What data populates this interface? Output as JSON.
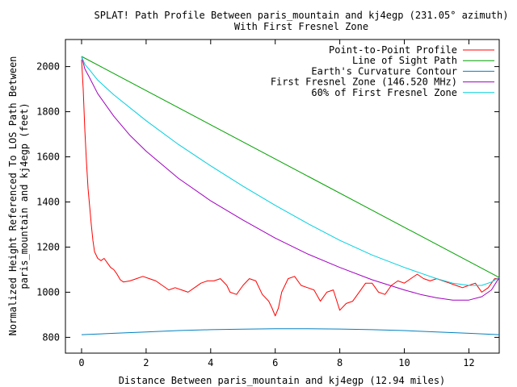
{
  "chart_data": {
    "type": "line",
    "title": "SPLAT! Path Profile Between paris_mountain and kj4egp (231.05° azimuth)",
    "subtitle": "With First Fresnel Zone",
    "xlabel": "Distance Between paris_mountain and kj4egp (12.94 miles)",
    "ylabel_lines": [
      "Normalized Height Referenced To LOS Path Between",
      "paris_mountain and kj4egp (feet)"
    ],
    "xlim": [
      -0.5,
      12.94
    ],
    "ylim": [
      730,
      2120
    ],
    "x_ticks": [
      "0",
      "2",
      "4",
      "6",
      "8",
      "10",
      "12"
    ],
    "y_ticks": [
      "800",
      "1000",
      "1200",
      "1400",
      "1600",
      "1800",
      "2000"
    ],
    "grid": false,
    "legend_position": "top-right",
    "series": [
      {
        "name": "Point-to-Point Profile",
        "color": "#ff0000",
        "points": [
          [
            0,
            2030
          ],
          [
            0.05,
            1900
          ],
          [
            0.1,
            1720
          ],
          [
            0.15,
            1580
          ],
          [
            0.2,
            1460
          ],
          [
            0.25,
            1380
          ],
          [
            0.3,
            1300
          ],
          [
            0.35,
            1230
          ],
          [
            0.4,
            1180
          ],
          [
            0.5,
            1150
          ],
          [
            0.6,
            1140
          ],
          [
            0.7,
            1150
          ],
          [
            0.8,
            1130
          ],
          [
            0.9,
            1110
          ],
          [
            1.0,
            1100
          ],
          [
            1.1,
            1080
          ],
          [
            1.2,
            1055
          ],
          [
            1.3,
            1045
          ],
          [
            1.5,
            1050
          ],
          [
            1.7,
            1060
          ],
          [
            1.9,
            1070
          ],
          [
            2.1,
            1060
          ],
          [
            2.3,
            1050
          ],
          [
            2.5,
            1030
          ],
          [
            2.7,
            1010
          ],
          [
            2.9,
            1020
          ],
          [
            3.1,
            1010
          ],
          [
            3.3,
            1000
          ],
          [
            3.5,
            1020
          ],
          [
            3.7,
            1040
          ],
          [
            3.9,
            1050
          ],
          [
            4.1,
            1050
          ],
          [
            4.3,
            1060
          ],
          [
            4.5,
            1030
          ],
          [
            4.6,
            1000
          ],
          [
            4.8,
            990
          ],
          [
            5.0,
            1030
          ],
          [
            5.2,
            1060
          ],
          [
            5.4,
            1050
          ],
          [
            5.6,
            990
          ],
          [
            5.8,
            960
          ],
          [
            5.9,
            930
          ],
          [
            6.0,
            895
          ],
          [
            6.1,
            930
          ],
          [
            6.2,
            1000
          ],
          [
            6.4,
            1060
          ],
          [
            6.6,
            1070
          ],
          [
            6.8,
            1030
          ],
          [
            7.0,
            1020
          ],
          [
            7.2,
            1010
          ],
          [
            7.4,
            960
          ],
          [
            7.6,
            1000
          ],
          [
            7.8,
            1010
          ],
          [
            8.0,
            920
          ],
          [
            8.2,
            950
          ],
          [
            8.4,
            960
          ],
          [
            8.6,
            1000
          ],
          [
            8.8,
            1040
          ],
          [
            9.0,
            1040
          ],
          [
            9.2,
            1000
          ],
          [
            9.4,
            990
          ],
          [
            9.6,
            1030
          ],
          [
            9.8,
            1050
          ],
          [
            10.0,
            1040
          ],
          [
            10.2,
            1060
          ],
          [
            10.4,
            1080
          ],
          [
            10.6,
            1060
          ],
          [
            10.8,
            1050
          ],
          [
            11.0,
            1060
          ],
          [
            11.2,
            1050
          ],
          [
            11.4,
            1040
          ],
          [
            11.6,
            1030
          ],
          [
            11.8,
            1020
          ],
          [
            12.0,
            1030
          ],
          [
            12.2,
            1040
          ],
          [
            12.4,
            1000
          ],
          [
            12.6,
            1020
          ],
          [
            12.8,
            1060
          ],
          [
            12.94,
            1060
          ]
        ]
      },
      {
        "name": "Line of Sight Path",
        "color": "#00a000",
        "points": [
          [
            0,
            2045
          ],
          [
            12.94,
            1065
          ]
        ]
      },
      {
        "name": "Earth's Curvature Contour",
        "color": "#0080c0",
        "points": [
          [
            0,
            812
          ],
          [
            1,
            818
          ],
          [
            2,
            824
          ],
          [
            3,
            830
          ],
          [
            4,
            834
          ],
          [
            5,
            836
          ],
          [
            6,
            838
          ],
          [
            7,
            838
          ],
          [
            8,
            837
          ],
          [
            9,
            834
          ],
          [
            10,
            830
          ],
          [
            11,
            824
          ],
          [
            12,
            818
          ],
          [
            12.94,
            812
          ]
        ]
      },
      {
        "name": "First Fresnel Zone (146.520 MHz)",
        "color": "#a000c0",
        "points": [
          [
            0,
            2045
          ],
          [
            0.1,
            1990
          ],
          [
            0.25,
            1950
          ],
          [
            0.5,
            1880
          ],
          [
            1,
            1780
          ],
          [
            1.5,
            1695
          ],
          [
            2,
            1625
          ],
          [
            3,
            1505
          ],
          [
            4,
            1405
          ],
          [
            5,
            1320
          ],
          [
            6,
            1240
          ],
          [
            7,
            1170
          ],
          [
            8,
            1110
          ],
          [
            9,
            1055
          ],
          [
            10,
            1010
          ],
          [
            10.5,
            990
          ],
          [
            11,
            975
          ],
          [
            11.5,
            965
          ],
          [
            12,
            965
          ],
          [
            12.4,
            980
          ],
          [
            12.7,
            1010
          ],
          [
            12.94,
            1065
          ]
        ]
      },
      {
        "name": "60% of First Fresnel Zone",
        "color": "#00d0e0",
        "points": [
          [
            0,
            2045
          ],
          [
            0.1,
            2010
          ],
          [
            0.25,
            1985
          ],
          [
            0.5,
            1940
          ],
          [
            1,
            1875
          ],
          [
            2,
            1760
          ],
          [
            3,
            1655
          ],
          [
            4,
            1560
          ],
          [
            5,
            1470
          ],
          [
            6,
            1385
          ],
          [
            7,
            1305
          ],
          [
            8,
            1230
          ],
          [
            9,
            1165
          ],
          [
            10,
            1110
          ],
          [
            10.5,
            1085
          ],
          [
            11,
            1060
          ],
          [
            11.5,
            1040
          ],
          [
            12,
            1030
          ],
          [
            12.4,
            1030
          ],
          [
            12.7,
            1045
          ],
          [
            12.94,
            1065
          ]
        ]
      }
    ]
  }
}
